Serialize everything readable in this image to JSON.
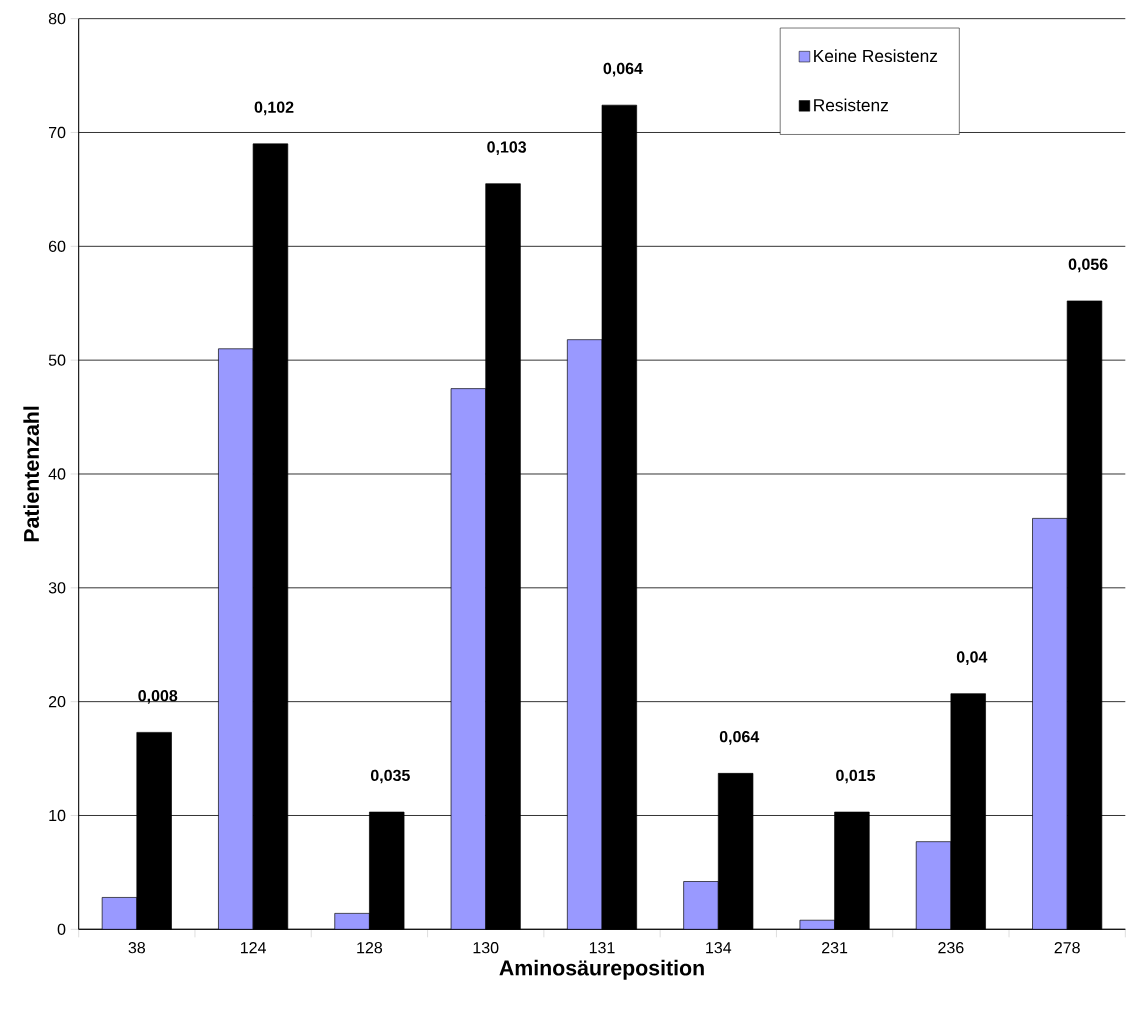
{
  "chart_data": {
    "type": "bar",
    "xlabel": "Aminosäureposition",
    "ylabel": "Patientenzahl",
    "categories": [
      "38",
      "124",
      "128",
      "130",
      "131",
      "134",
      "231",
      "236",
      "278"
    ],
    "series": [
      {
        "name": "Keine Resistenz",
        "color": "#9999ff",
        "values": [
          2.8,
          51,
          1.4,
          47.5,
          51.8,
          4.2,
          0.8,
          7.7,
          36.1
        ]
      },
      {
        "name": "Resistenz",
        "color": "#000000",
        "values": [
          17.3,
          69,
          10.3,
          65.5,
          72.4,
          13.7,
          10.3,
          20.7,
          55.2
        ]
      }
    ],
    "ylim": [
      0,
      80
    ],
    "yticks": [
      0,
      10,
      20,
      30,
      40,
      50,
      60,
      70,
      80
    ],
    "grid": "y",
    "legend": "top right",
    "annotations": [
      {
        "text": "0,008",
        "x": "38",
        "y": 17.3
      },
      {
        "text": "0,102",
        "x": "124",
        "y": 69
      },
      {
        "text": "0,035",
        "x": "128",
        "y": 10.3
      },
      {
        "text": "0,103",
        "x": "130",
        "y": 65.5
      },
      {
        "text": "0,064",
        "x": "131",
        "y": 72.4
      },
      {
        "text": "0,064",
        "x": "134",
        "y": 13.7
      },
      {
        "text": "0,015",
        "x": "231",
        "y": 10.3
      },
      {
        "text": "0,04",
        "x": "236",
        "y": 20.7
      },
      {
        "text": "0,056",
        "x": "278",
        "y": 55.2
      }
    ]
  }
}
